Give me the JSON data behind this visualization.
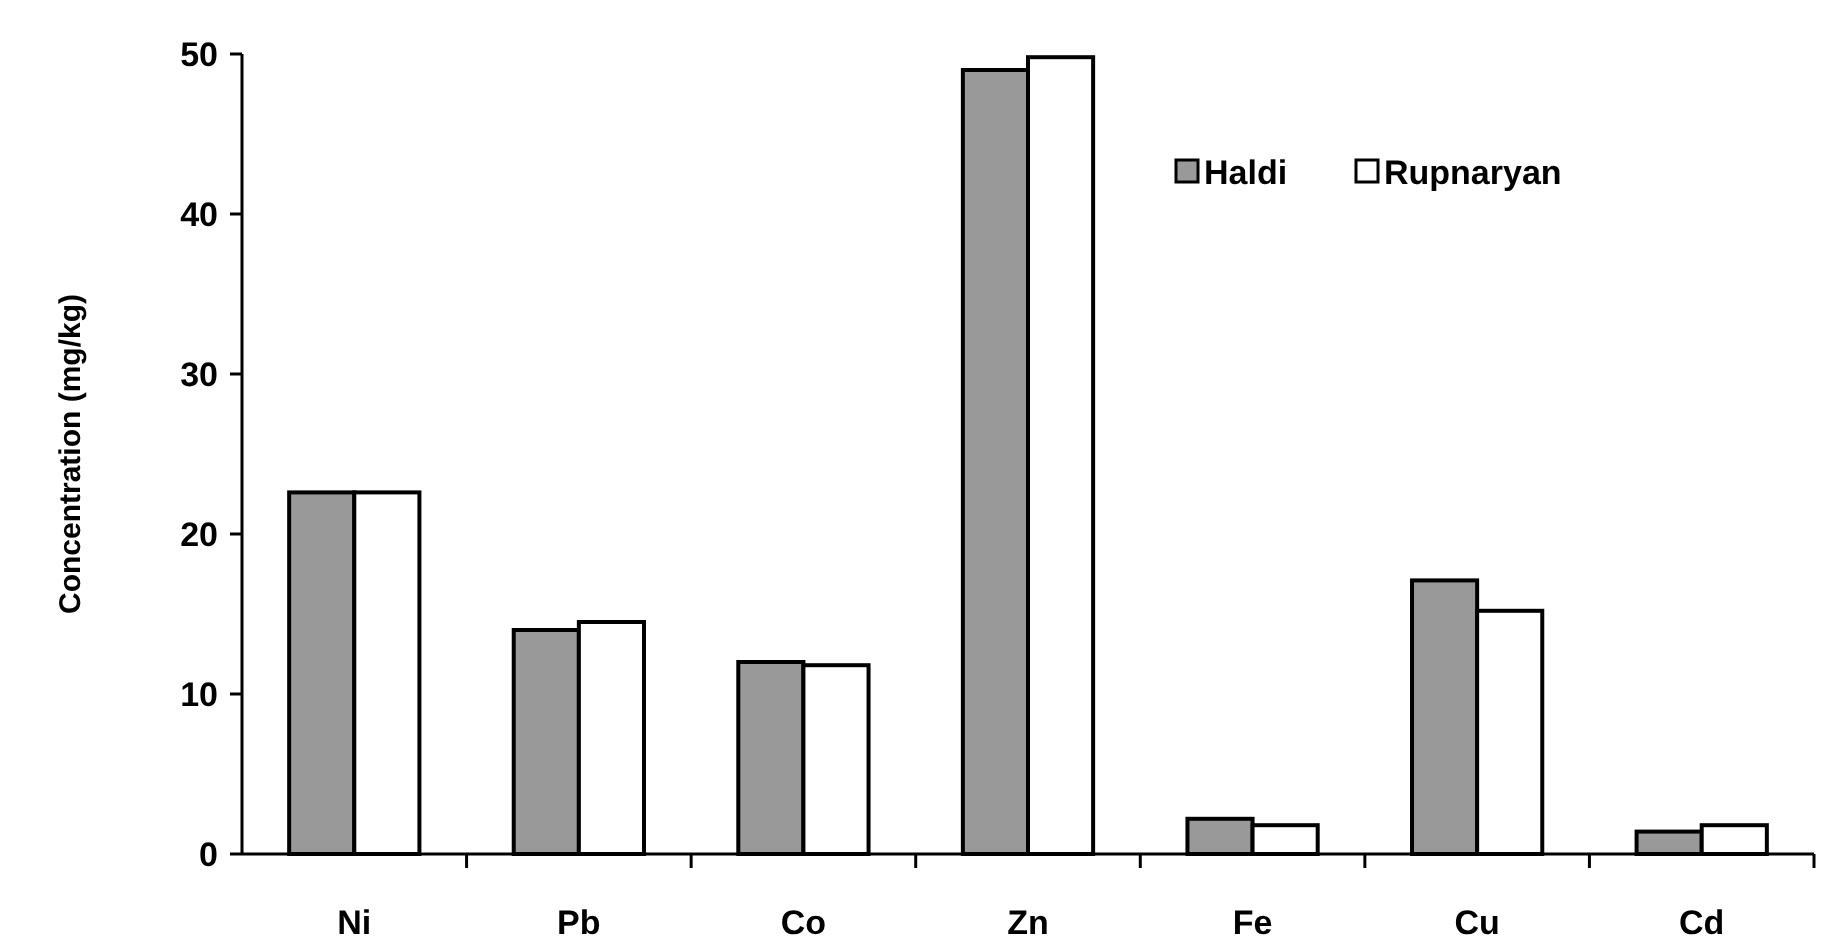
{
  "chart_data": {
    "type": "bar",
    "ylabel": "Concentration (mg/kg)",
    "categories": [
      "Ni",
      "Pb",
      "Co",
      "Zn",
      "Fe",
      "Cu",
      "Cd"
    ],
    "series": [
      {
        "name": "Haldi",
        "color": "#999999",
        "values": [
          22.6,
          14.0,
          12.0,
          49.0,
          2.2,
          17.1,
          1.4
        ]
      },
      {
        "name": "Rupnaryan",
        "color": "#ffffff",
        "values": [
          22.6,
          14.5,
          11.8,
          49.8,
          1.8,
          15.2,
          1.8
        ]
      }
    ],
    "ylim": [
      0,
      50
    ],
    "yticks": [
      0,
      10,
      20,
      30,
      40,
      50
    ],
    "grid": false,
    "legend": "top right"
  }
}
